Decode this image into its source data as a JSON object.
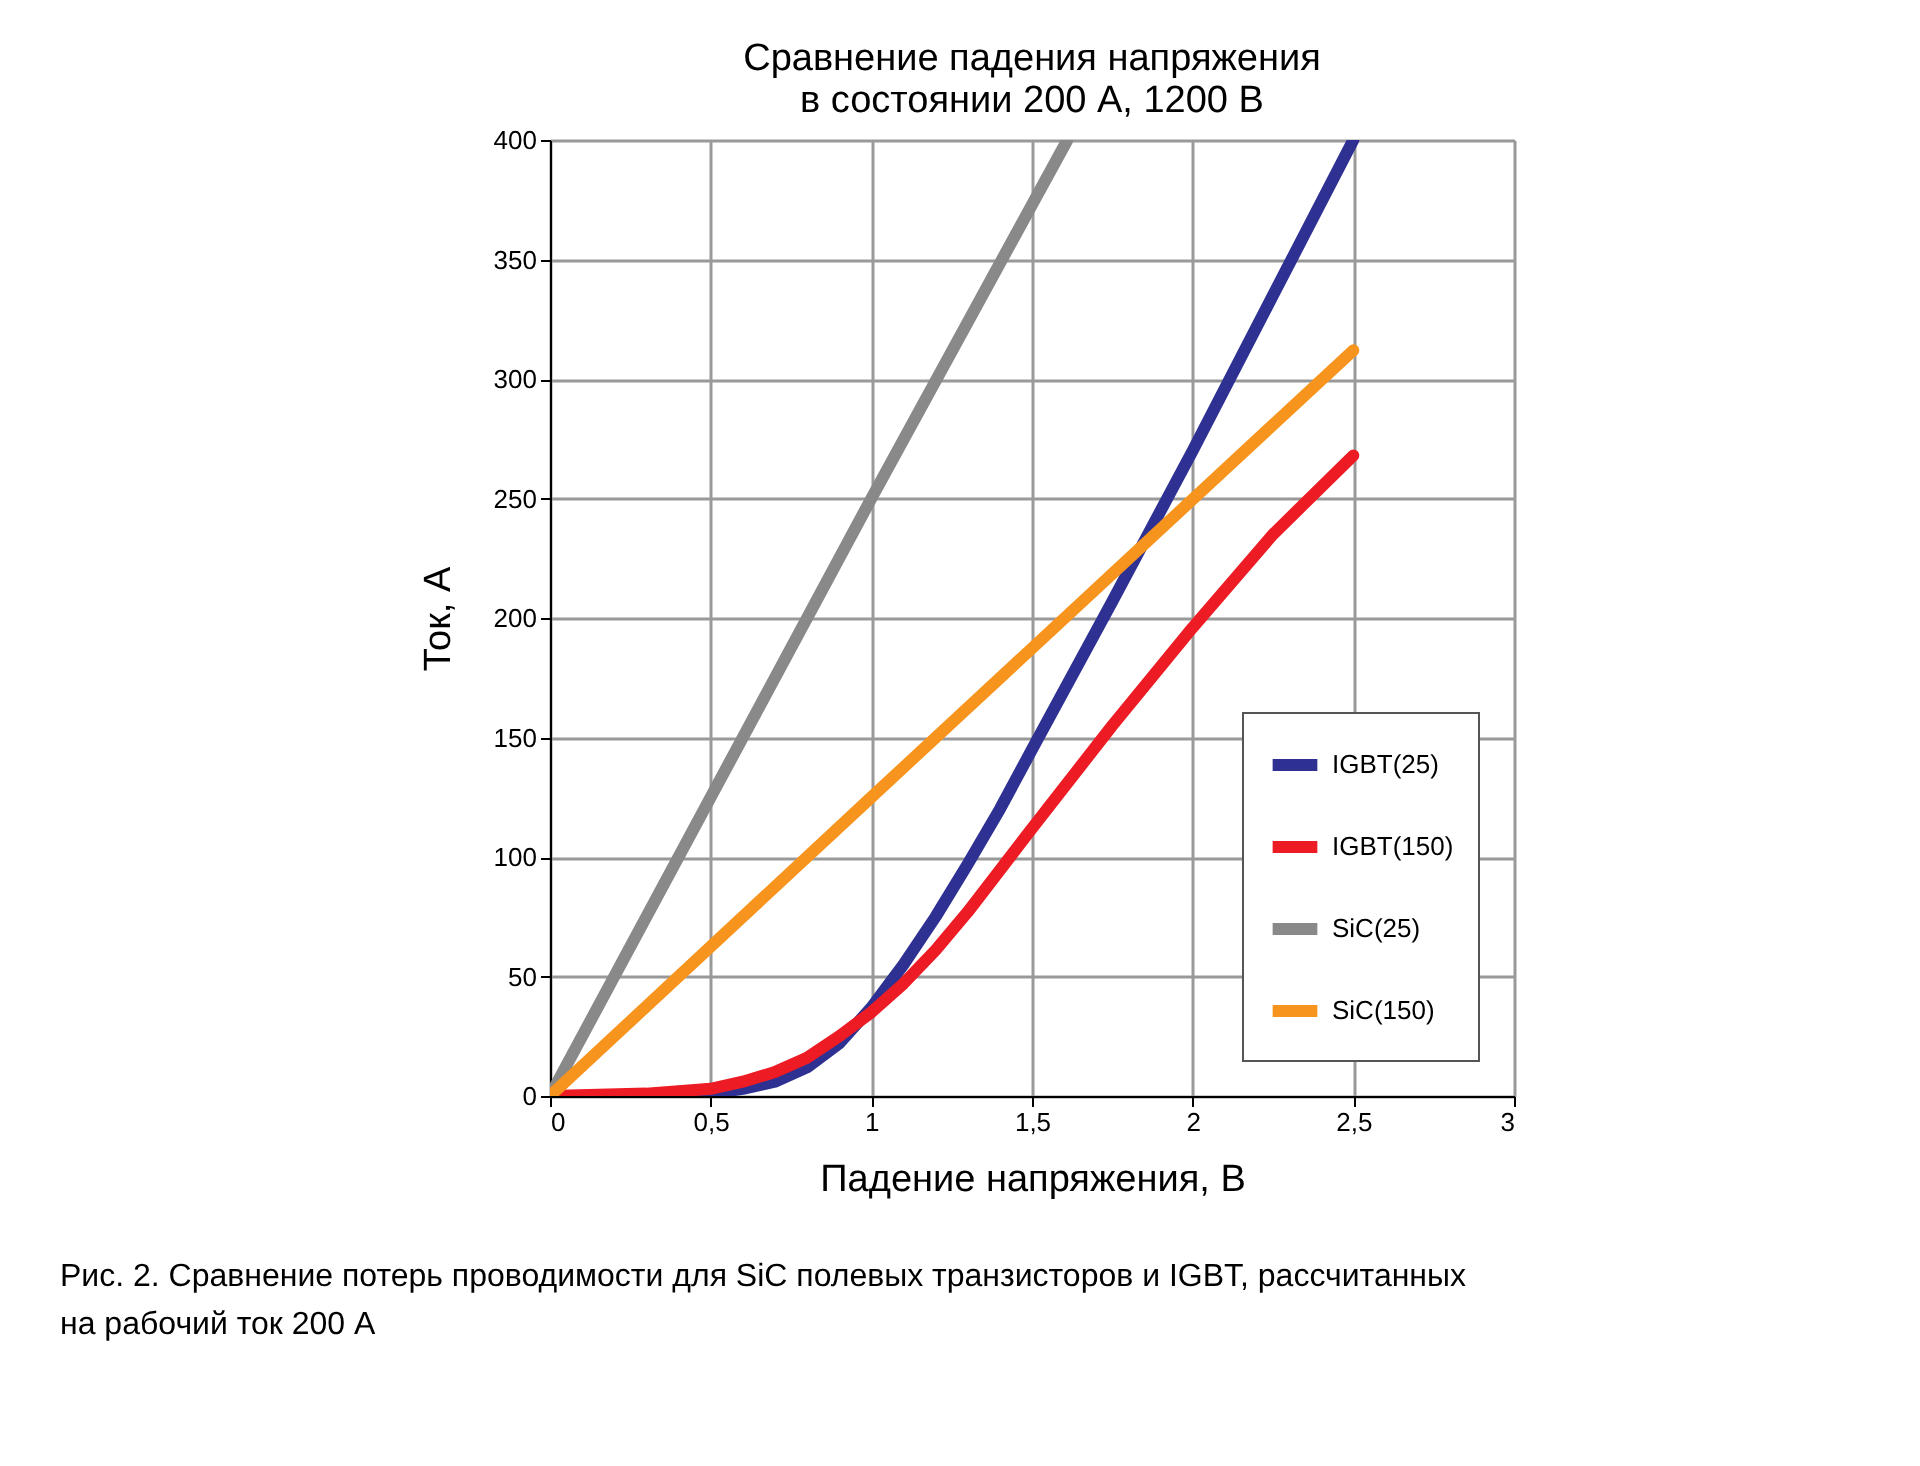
{
  "chart_data": {
    "type": "line",
    "title": "Сравнение падения напряжения в состоянии 200 А, 1200 В",
    "xlabel": "Падение напряжения, В",
    "ylabel": "Ток, А",
    "xlim": [
      0,
      3
    ],
    "xticks": [
      0,
      {
        "value": 0.5,
        "label": "0,5"
      },
      1,
      {
        "value": 1.5,
        "label": "1,5"
      },
      2,
      {
        "value": 2.5,
        "label": "2,5"
      },
      3
    ],
    "ylim": [
      0,
      400
    ],
    "yticks": [
      0,
      50,
      100,
      150,
      200,
      250,
      300,
      350,
      400
    ],
    "grid": true,
    "legend": "bottom right",
    "marker": "none",
    "line_style": "solid",
    "series": [
      {
        "name": "IGBT(25)",
        "color": "#2e3192",
        "x": [
          0,
          0.3,
          0.5,
          0.6,
          0.7,
          0.8,
          0.9,
          1.0,
          1.1,
          1.2,
          1.3,
          1.4,
          1.5,
          1.75,
          2.0,
          2.25,
          2.5
        ],
        "values": [
          0,
          0,
          1,
          3,
          6,
          12,
          22,
          37,
          55,
          75,
          97,
          120,
          145,
          207,
          270,
          335,
          400
        ]
      },
      {
        "name": "IGBT(150)",
        "color": "#ed1c24",
        "x": [
          0,
          0.3,
          0.5,
          0.6,
          0.7,
          0.8,
          0.9,
          1.0,
          1.1,
          1.2,
          1.3,
          1.5,
          1.75,
          2.0,
          2.25,
          2.5
        ],
        "values": [
          0,
          1,
          3,
          6,
          10,
          16,
          25,
          35,
          47,
          61,
          77,
          112,
          155,
          196,
          235,
          268
        ]
      },
      {
        "name": "SiC(25)",
        "color": "#898989",
        "x": [
          0,
          1.0,
          1.61
        ],
        "values": [
          0,
          250,
          400
        ]
      },
      {
        "name": "SiC(150)",
        "color": "#f7941d",
        "x": [
          0,
          1.0,
          2.5
        ],
        "values": [
          0,
          125,
          312
        ]
      }
    ],
    "annotations": [
      "Рис. 2. Сравнение потерь проводимости для SiC полевых транзисторов и IGBT, рассчитанных на рабочий ток 200 А"
    ]
  }
}
